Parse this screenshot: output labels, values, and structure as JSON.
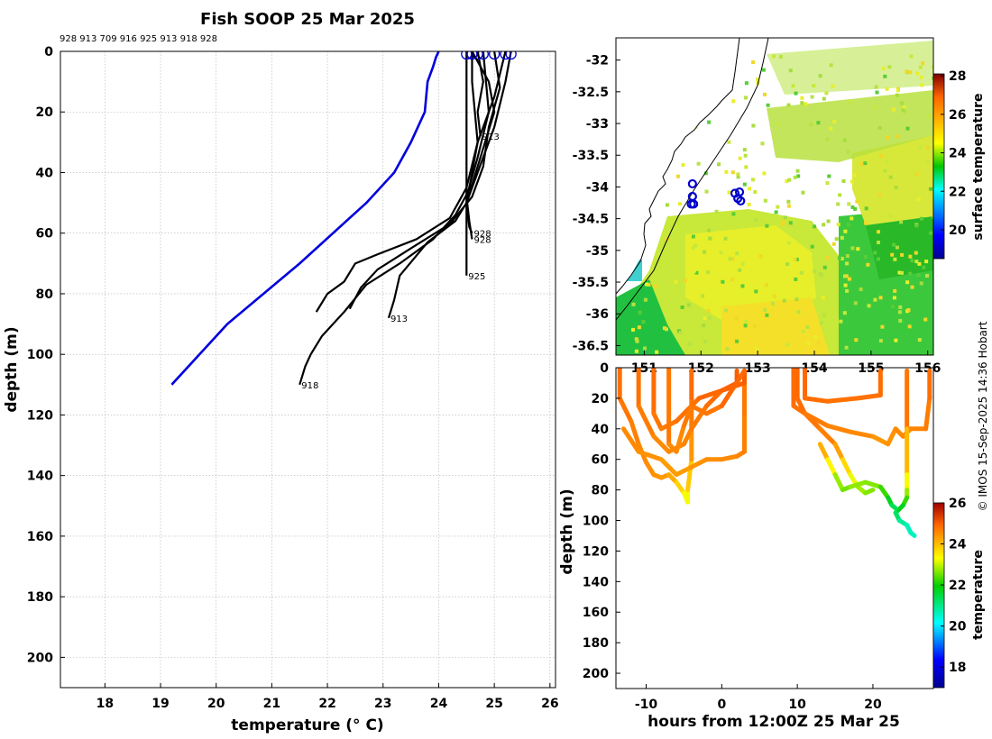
{
  "title": "Fish SOOP 25 Mar 2025",
  "profile_ids_label": "928 913 709 916 925 913 918 928",
  "credit": "© IMOS 15-Sep-2025 14:36 Hobart",
  "colors": {
    "climatology": "#0000dd",
    "profile": "#000000",
    "marker": "#0000cc"
  },
  "chart_data": [
    {
      "name": "profile-plot",
      "type": "line",
      "title": "Fish SOOP 25 Mar 2025",
      "xlabel": "temperature (° C)",
      "ylabel": "depth (m)",
      "xlim": [
        17.2,
        26.1
      ],
      "ylim": [
        210,
        0
      ],
      "xticks": [
        18,
        19,
        20,
        21,
        22,
        23,
        24,
        25,
        26
      ],
      "yticks": [
        0,
        20,
        40,
        60,
        80,
        100,
        120,
        140,
        160,
        180,
        200
      ],
      "grid": true,
      "climatology": {
        "name": "climatology",
        "points": [
          [
            24.0,
            0
          ],
          [
            23.95,
            2
          ],
          [
            23.9,
            5
          ],
          [
            23.8,
            10
          ],
          [
            23.75,
            20
          ],
          [
            23.5,
            30
          ],
          [
            23.2,
            40
          ],
          [
            22.7,
            50
          ],
          [
            21.5,
            70
          ],
          [
            20.2,
            90
          ],
          [
            19.2,
            110
          ]
        ]
      },
      "profiles": [
        {
          "id": "928",
          "label_depth": 60,
          "points": [
            [
              24.6,
              0
            ],
            [
              24.6,
              10
            ],
            [
              24.65,
              20
            ],
            [
              24.7,
              30
            ],
            [
              24.6,
              40
            ],
            [
              24.5,
              50
            ],
            [
              24.55,
              58
            ],
            [
              24.6,
              60
            ]
          ]
        },
        {
          "id": "928",
          "label_depth": 62,
          "points": [
            [
              24.8,
              0
            ],
            [
              24.85,
              10
            ],
            [
              24.9,
              20
            ],
            [
              24.7,
              35
            ],
            [
              24.5,
              48
            ],
            [
              24.55,
              56
            ],
            [
              24.6,
              62
            ]
          ]
        },
        {
          "id": "925",
          "label_depth": 74,
          "points": [
            [
              24.5,
              0
            ],
            [
              24.5,
              20
            ],
            [
              24.5,
              40
            ],
            [
              24.5,
              60
            ],
            [
              24.5,
              74
            ]
          ]
        },
        {
          "id": "913",
          "label_depth": 88,
          "points": [
            [
              25.3,
              0
            ],
            [
              25.2,
              10
            ],
            [
              25.0,
              25
            ],
            [
              24.8,
              35
            ],
            [
              24.5,
              50
            ],
            [
              24.3,
              56
            ],
            [
              23.8,
              63
            ],
            [
              23.3,
              74
            ],
            [
              23.2,
              82
            ],
            [
              23.1,
              88
            ]
          ]
        },
        {
          "id": "913",
          "label_depth": 28,
          "points": [
            [
              24.7,
              0
            ],
            [
              24.8,
              10
            ],
            [
              24.7,
              20
            ],
            [
              24.75,
              28
            ]
          ]
        },
        {
          "id": "916",
          "label_depth": null,
          "points": [
            [
              25.0,
              0
            ],
            [
              25.1,
              12
            ],
            [
              24.9,
              25
            ],
            [
              24.8,
              38
            ],
            [
              24.6,
              48
            ],
            [
              24.2,
              57
            ],
            [
              23.5,
              65
            ],
            [
              22.9,
              72
            ],
            [
              22.6,
              78
            ],
            [
              22.4,
              85
            ]
          ]
        },
        {
          "id": "709",
          "label_depth": null,
          "points": [
            [
              25.2,
              0
            ],
            [
              25.0,
              15
            ],
            [
              24.7,
              30
            ],
            [
              24.5,
              45
            ],
            [
              24.2,
              55
            ],
            [
              23.6,
              62
            ],
            [
              22.9,
              67
            ],
            [
              22.5,
              70
            ],
            [
              22.3,
              76
            ],
            [
              22.0,
              80
            ],
            [
              21.8,
              86
            ]
          ]
        },
        {
          "id": "918",
          "label_depth": 110,
          "points": [
            [
              24.6,
              0
            ],
            [
              24.9,
              10
            ],
            [
              25.0,
              20
            ],
            [
              24.8,
              32
            ],
            [
              24.6,
              44
            ],
            [
              24.3,
              54
            ],
            [
              23.9,
              62
            ],
            [
              23.3,
              70
            ],
            [
              22.7,
              77
            ],
            [
              22.3,
              86
            ],
            [
              21.9,
              94
            ],
            [
              21.7,
              100
            ],
            [
              21.6,
              104
            ],
            [
              21.5,
              110
            ]
          ]
        }
      ]
    },
    {
      "name": "sst-map",
      "type": "heatmap",
      "xlim": [
        150.5,
        156.1
      ],
      "ylim": [
        -36.65,
        -31.65
      ],
      "xticks": [
        151,
        152,
        153,
        154,
        155,
        156
      ],
      "yticks": [
        -32,
        -32.5,
        -33,
        -33.5,
        -34,
        -34.5,
        -35,
        -35.5,
        -36,
        -36.5
      ],
      "colorbar": {
        "label": "surface temperature",
        "min": 18.5,
        "max": 28.1,
        "ticks": [
          20,
          22,
          24,
          26,
          28
        ]
      },
      "stations": [
        [
          151.85,
          -33.95
        ],
        [
          151.85,
          -34.15
        ],
        [
          151.83,
          -34.27
        ],
        [
          151.87,
          -34.27
        ],
        [
          152.6,
          -34.1
        ],
        [
          152.68,
          -34.08
        ],
        [
          152.65,
          -34.18
        ],
        [
          152.7,
          -34.22
        ]
      ]
    },
    {
      "name": "section-plot",
      "type": "scatter",
      "xlabel": "hours from 12:00Z 25 Mar 25",
      "ylabel": "depth (m)",
      "xlim": [
        -14,
        28
      ],
      "ylim": [
        210,
        0
      ],
      "xticks": [
        -10,
        0,
        10,
        20
      ],
      "yticks": [
        0,
        20,
        40,
        60,
        80,
        100,
        120,
        140,
        160,
        180,
        200
      ],
      "colorbar": {
        "label": "temperature",
        "min": 17,
        "max": 26,
        "ticks": [
          18,
          20,
          22,
          24,
          26
        ]
      },
      "tracks": [
        {
          "points": [
            [
              -13.5,
              0,
              24.8
            ],
            [
              -13.5,
              20,
              24.8
            ],
            [
              -12,
              35,
              24.7
            ],
            [
              -11,
              50,
              24.6
            ],
            [
              -10,
              62,
              24.5
            ],
            [
              -9,
              70,
              24.5
            ],
            [
              -8,
              72,
              24.4
            ],
            [
              -7,
              70,
              24.4
            ],
            [
              -6,
              75,
              24.0
            ],
            [
              -5,
              82,
              23.5
            ],
            [
              -4.5,
              88,
              23.0
            ],
            [
              -4.5,
              80,
              23.5
            ],
            [
              -4,
              60,
              24.2
            ],
            [
              -4,
              40,
              24.6
            ],
            [
              -4,
              20,
              24.8
            ],
            [
              -4,
              2,
              24.9
            ]
          ]
        },
        {
          "points": [
            [
              -11,
              0,
              24.8
            ],
            [
              -11,
              25,
              24.8
            ],
            [
              -9,
              45,
              24.6
            ],
            [
              -7,
              55,
              24.5
            ],
            [
              -5,
              50,
              24.6
            ],
            [
              -4,
              40,
              24.6
            ],
            [
              -2,
              25,
              24.8
            ],
            [
              0,
              15,
              24.9
            ],
            [
              2,
              10,
              25.0
            ],
            [
              2,
              2,
              25.0
            ]
          ]
        },
        {
          "points": [
            [
              -13,
              40,
              24.6
            ],
            [
              -11,
              55,
              24.5
            ],
            [
              -8,
              60,
              24.4
            ],
            [
              -6,
              70,
              24.3
            ],
            [
              -4,
              65,
              24.4
            ],
            [
              -2,
              60,
              24.5
            ],
            [
              0,
              60,
              24.5
            ],
            [
              2,
              58,
              24.6
            ],
            [
              3,
              55,
              24.6
            ],
            [
              3,
              30,
              24.7
            ],
            [
              3,
              2,
              24.8
            ]
          ]
        },
        {
          "points": [
            [
              -9,
              0,
              24.9
            ],
            [
              -9,
              30,
              24.8
            ],
            [
              -8,
              40,
              24.7
            ],
            [
              -6,
              35,
              24.7
            ],
            [
              -3,
              20,
              24.9
            ],
            [
              0,
              15,
              24.9
            ],
            [
              3,
              10,
              25.0
            ],
            [
              3,
              2,
              25.0
            ]
          ]
        },
        {
          "points": [
            [
              -7,
              0,
              24.9
            ],
            [
              -7,
              50,
              24.6
            ],
            [
              -6,
              55,
              24.5
            ],
            [
              -5,
              38,
              24.6
            ],
            [
              -4,
              25,
              24.8
            ],
            [
              -2,
              30,
              24.7
            ],
            [
              0,
              25,
              24.8
            ],
            [
              3,
              2,
              25.0
            ]
          ]
        },
        {
          "points": [
            [
              10,
              0,
              24.9
            ],
            [
              10,
              20,
              24.9
            ],
            [
              11,
              30,
              24.8
            ],
            [
              13,
              40,
              24.7
            ],
            [
              15,
              50,
              24.6
            ],
            [
              16,
              60,
              24.0
            ],
            [
              17,
              70,
              23.4
            ],
            [
              18,
              78,
              23.0
            ],
            [
              19,
              82,
              22.6
            ],
            [
              20,
              80,
              22.7
            ]
          ]
        },
        {
          "points": [
            [
              9.5,
              0,
              24.9
            ],
            [
              9.5,
              25,
              24.8
            ],
            [
              11,
              30,
              24.8
            ],
            [
              14,
              38,
              24.6
            ],
            [
              17,
              42,
              24.6
            ],
            [
              20,
              45,
              24.5
            ],
            [
              22,
              50,
              24.3
            ],
            [
              23,
              40,
              24.6
            ],
            [
              24,
              45,
              24.5
            ],
            [
              25,
              40,
              24.6
            ],
            [
              27,
              40,
              24.6
            ],
            [
              27.5,
              20,
              24.8
            ],
            [
              27.5,
              2,
              24.9
            ]
          ]
        },
        {
          "points": [
            [
              11,
              0,
              24.9
            ],
            [
              11,
              20,
              24.9
            ],
            [
              14,
              22,
              24.8
            ],
            [
              18,
              20,
              24.8
            ],
            [
              21,
              18,
              24.8
            ],
            [
              21,
              2,
              24.9
            ]
          ]
        },
        {
          "points": [
            [
              24.5,
              2,
              24.9
            ],
            [
              24.5,
              40,
              24.6
            ],
            [
              24.5,
              70,
              23.5
            ],
            [
              24.5,
              80,
              23.0
            ],
            [
              24.5,
              85,
              22.5
            ],
            [
              24,
              90,
              22.0
            ],
            [
              23,
              95,
              21.5
            ],
            [
              23.5,
              100,
              21.0
            ],
            [
              24.5,
              103,
              20.7
            ],
            [
              25,
              108,
              20.6
            ],
            [
              25.5,
              110,
              20.6
            ]
          ]
        },
        {
          "points": [
            [
              13,
              50,
              24.5
            ],
            [
              14,
              60,
              23.8
            ],
            [
              15,
              70,
              23.0
            ],
            [
              16,
              80,
              22.5
            ],
            [
              17,
              78,
              22.6
            ],
            [
              19,
              75,
              22.8
            ],
            [
              21,
              78,
              22.5
            ],
            [
              22,
              85,
              22.0
            ],
            [
              22.5,
              90,
              21.5
            ],
            [
              23,
              92,
              21.2
            ]
          ]
        }
      ]
    }
  ]
}
